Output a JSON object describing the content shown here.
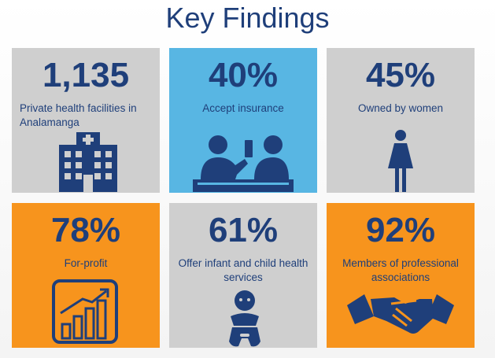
{
  "title": "Key Findings",
  "colors": {
    "navy": "#1f3f7a",
    "gray": "#cfcfcf",
    "blue": "#58b6e3",
    "orange": "#f7941d"
  },
  "cards": [
    {
      "stat": "1,135",
      "label": "Private health facilities in Analamanga",
      "icon": "hospital-icon",
      "color": "gray"
    },
    {
      "stat": "40%",
      "label": "Accept insurance",
      "icon": "reception-desk-icon",
      "color": "blue"
    },
    {
      "stat": "45%",
      "label": "Owned by women",
      "icon": "woman-icon",
      "color": "gray"
    },
    {
      "stat": "78%",
      "label": "For-profit",
      "icon": "growth-chart-icon",
      "color": "orange"
    },
    {
      "stat": "61%",
      "label": "Offer infant and child health services",
      "icon": "baby-icon",
      "color": "gray"
    },
    {
      "stat": "92%",
      "label": "Members of professional associations",
      "icon": "handshake-icon",
      "color": "orange"
    }
  ]
}
